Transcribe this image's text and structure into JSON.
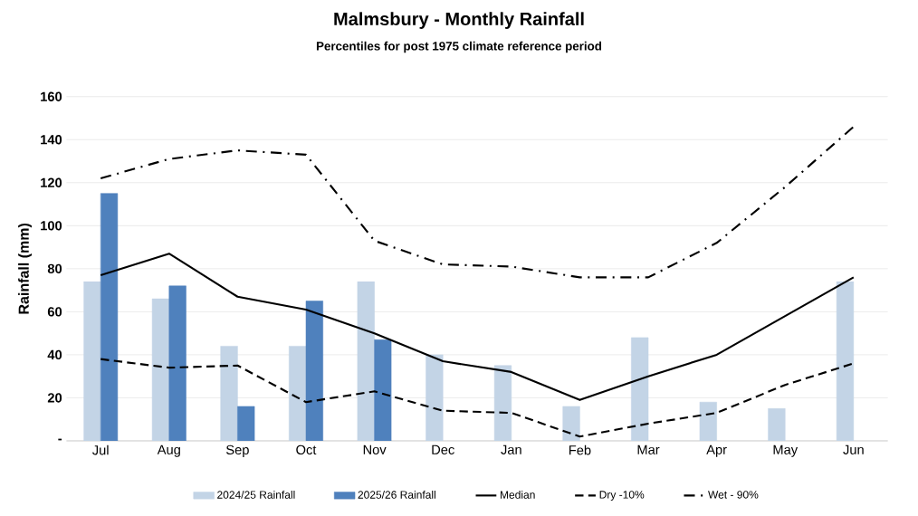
{
  "chart_data": {
    "type": "bar",
    "title": "Malmsbury - Monthly Rainfall",
    "subtitle": "Percentiles for post 1975 climate reference period",
    "ylabel": "Rainfall (mm)",
    "categories": [
      "Jul",
      "Aug",
      "Sep",
      "Oct",
      "Nov",
      "Dec",
      "Jan",
      "Feb",
      "Mar",
      "Apr",
      "May",
      "Jun"
    ],
    "series": [
      {
        "name": "2024/25 Rainfall",
        "color": "#c3d4e6",
        "values": [
          74,
          66,
          44,
          44,
          74,
          40,
          35,
          16,
          48,
          18,
          15,
          74
        ]
      },
      {
        "name": "2025/26 Rainfall",
        "color": "#4f81bd",
        "values": [
          115,
          72,
          16,
          65,
          47,
          null,
          null,
          null,
          null,
          null,
          null,
          null
        ]
      },
      {
        "name": "Median",
        "type": "line",
        "color": "#000000",
        "line_style": "solid",
        "values": [
          77,
          87,
          67,
          61,
          50,
          37,
          32,
          19,
          30,
          40,
          58,
          76
        ]
      },
      {
        "name": "Dry -10%",
        "type": "line",
        "color": "#000000",
        "line_style": "dashed",
        "values": [
          38,
          34,
          35,
          18,
          23,
          14,
          13,
          2,
          8,
          13,
          26,
          36
        ]
      },
      {
        "name": "Wet - 90%",
        "type": "line",
        "color": "#000000",
        "line_style": "dashdot",
        "values": [
          122,
          131,
          135,
          133,
          93,
          82,
          81,
          76,
          76,
          92,
          118,
          146
        ]
      }
    ],
    "ylim": [
      0,
      160
    ],
    "yticks": [
      {
        "value": 0,
        "label": "-"
      },
      20,
      40,
      60,
      80,
      100,
      120,
      140,
      160
    ],
    "grid": "y",
    "legend": "bottom"
  }
}
